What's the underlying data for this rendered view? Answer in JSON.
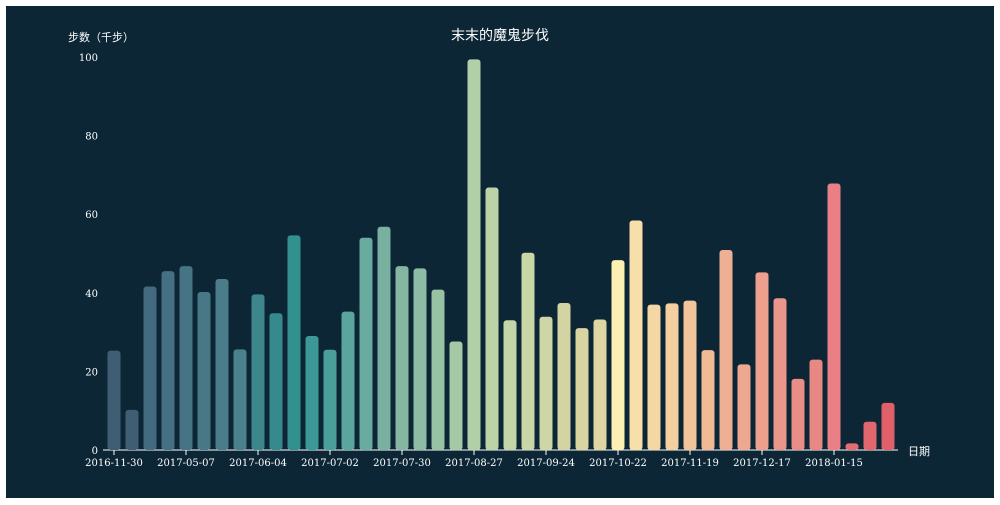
{
  "chart_data": {
    "type": "bar",
    "title": "末末的魔鬼步伐",
    "xlabel": "日期",
    "ylabel": "步数（千步）",
    "ylim": [
      0,
      100
    ],
    "yticks": [
      0,
      20,
      40,
      60,
      80,
      100
    ],
    "grid": false,
    "legend": "none",
    "x_tick_labels": [
      {
        "index": 0,
        "label": "2016-11-30"
      },
      {
        "index": 4,
        "label": "2017-05-07"
      },
      {
        "index": 8,
        "label": "2017-06-04"
      },
      {
        "index": 12,
        "label": "2017-07-02"
      },
      {
        "index": 16,
        "label": "2017-07-30"
      },
      {
        "index": 20,
        "label": "2017-08-27"
      },
      {
        "index": 24,
        "label": "2017-09-24"
      },
      {
        "index": 28,
        "label": "2017-10-22"
      },
      {
        "index": 32,
        "label": "2017-11-19"
      },
      {
        "index": 36,
        "label": "2017-12-17"
      },
      {
        "index": 40,
        "label": "2018-01-15"
      }
    ],
    "values": [
      25.3,
      10.2,
      41.6,
      45.5,
      46.8,
      40.2,
      43.5,
      25.6,
      39.6,
      34.8,
      54.6,
      29.0,
      25.5,
      35.2,
      54.0,
      56.8,
      46.8,
      46.2,
      40.8,
      27.6,
      99.4,
      66.8,
      33.0,
      50.2,
      33.9,
      37.4,
      31.0,
      33.2,
      48.3,
      58.4,
      37.0,
      37.3,
      38.0,
      25.4,
      50.9,
      21.8,
      45.2,
      38.6,
      18.1,
      23.0,
      67.8,
      1.7,
      7.2,
      12.0
    ],
    "colors": [
      "#3f5e73",
      "#3f5e73",
      "#436a7e",
      "#456f82",
      "#477484",
      "#487886",
      "#4a7d89",
      "#4b818a",
      "#3d878c",
      "#36898c",
      "#32908f",
      "#3b9896",
      "#4a9f9b",
      "#5aa59e",
      "#6aab9f",
      "#7ab0a0",
      "#84b6a2",
      "#8dbba3",
      "#97c2a4",
      "#a5c8a5",
      "#b2d0a7",
      "#bcd3a8",
      "#c3d6a7",
      "#c9d7a6",
      "#cfd6a5",
      "#d4d4a3",
      "#d9d4a2",
      "#e0d6a4",
      "#fcf0b2",
      "#f6dfa8",
      "#f5d7a3",
      "#f4cf9f",
      "#f2c49a",
      "#f0ba95",
      "#eeb092",
      "#eda990",
      "#eca08d",
      "#ea968a",
      "#e98e87",
      "#e88885",
      "#ea8086",
      "#e36d73",
      "#e1676e",
      "#e06069"
    ]
  }
}
